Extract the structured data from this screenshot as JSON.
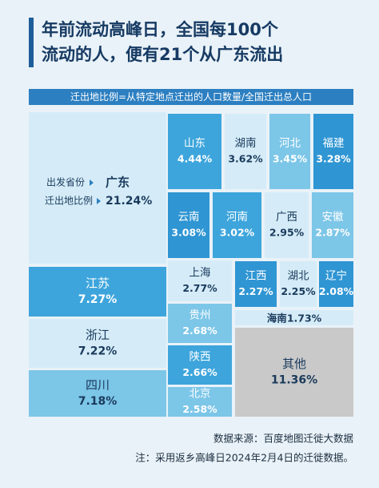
{
  "chart_data": {
    "type": "treemap",
    "title": [
      "年前流动高峰日，全国每100个",
      "流动的人，便有21个从广东流出"
    ],
    "subtitle": "迁出地比例=从特定地点迁出的人口数量/全国迁出总人口",
    "row_labels": [
      "出发省份",
      "迁出地比例"
    ],
    "categories": [
      "广东",
      "江苏",
      "浙江",
      "四川",
      "山东",
      "湖南",
      "河北",
      "福建",
      "云南",
      "河南",
      "广西",
      "安徽",
      "上海",
      "贵州",
      "陕西",
      "北京",
      "江西",
      "湖北",
      "辽宁",
      "海南",
      "其他"
    ],
    "values": [
      21.24,
      7.27,
      7.22,
      7.18,
      4.44,
      3.62,
      3.45,
      3.28,
      3.08,
      3.02,
      2.95,
      2.87,
      2.77,
      2.68,
      2.66,
      2.58,
      2.27,
      2.25,
      2.08,
      1.73,
      11.36
    ],
    "value_labels": [
      "21.24%",
      "7.27%",
      "7.22%",
      "7.18%",
      "4.44%",
      "3.62%",
      "3.45%",
      "3.28%",
      "3.08%",
      "3.02%",
      "2.95%",
      "2.87%",
      "2.77%",
      "2.68%",
      "2.66%",
      "2.58%",
      "2.27%",
      "2.25%",
      "2.08%",
      "1.73%",
      "11.36%"
    ],
    "colors": [
      "#d5ecf8",
      "#3da5dc",
      "#d5ecf8",
      "#7cc6e8",
      "#3da5dc",
      "#d5ecf8",
      "#7cc6e8",
      "#2f95d3",
      "#2f95d3",
      "#3da5dc",
      "#d5ecf8",
      "#7cc6e8",
      "#d5ecf8",
      "#7cc6e8",
      "#3da5dc",
      "#7cc6e8",
      "#2f95d3",
      "#d5ecf8",
      "#2f95d3",
      "#d5ecf8",
      "#c9c9c9"
    ],
    "source": "数据来源：百度地图迁徙大数据",
    "note": "注：采用返乡高峰日2024年2月4日的迁徙数据。"
  }
}
